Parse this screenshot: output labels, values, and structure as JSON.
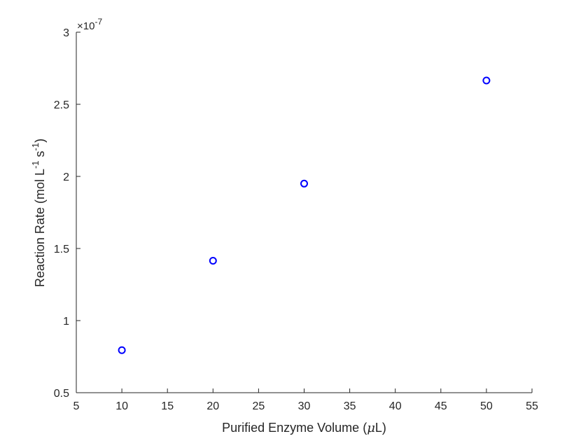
{
  "chart_data": {
    "type": "scatter",
    "title": "",
    "xlabel": {
      "prefix": "Purified Enzyme Volume (",
      "greek": "μ",
      "unit": "L",
      "suffix": ")"
    },
    "ylabel": {
      "prefix": "Reaction Rate (mol L",
      "exp1": "-1",
      "mid": " s",
      "exp2": "-1",
      "suffix": ")"
    },
    "y_multiplier": {
      "base": "×10",
      "exponent": "-7"
    },
    "xlim": [
      5,
      55
    ],
    "ylim": [
      0.5,
      3
    ],
    "xticks": [
      5,
      10,
      15,
      20,
      25,
      30,
      35,
      40,
      45,
      50,
      55
    ],
    "yticks": [
      0.5,
      1,
      1.5,
      2,
      2.5,
      3
    ],
    "ytick_labels": [
      "0.5",
      "1",
      "1.5",
      "2",
      "2.5",
      "3"
    ],
    "grid": false,
    "marker": "circle-open",
    "color": "#0000ff",
    "series": [
      {
        "x": [
          10,
          20,
          30,
          50
        ],
        "y": [
          0.795,
          1.415,
          1.95,
          2.665
        ]
      }
    ]
  }
}
